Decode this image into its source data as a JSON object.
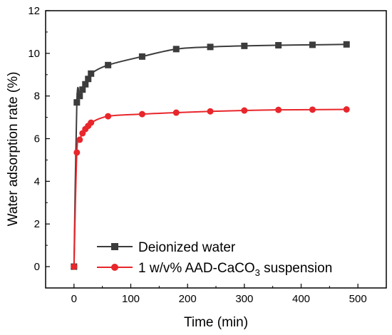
{
  "chart_data": {
    "type": "line",
    "title": "",
    "xlabel": "Time (min)",
    "ylabel": "Water adsorption rate (%)",
    "xlim": [
      -50,
      550
    ],
    "ylim": [
      -1,
      12
    ],
    "xticks": [
      0,
      100,
      200,
      300,
      400,
      500
    ],
    "yticks": [
      0,
      2,
      4,
      6,
      8,
      10,
      12
    ],
    "grid": false,
    "legend_position": "bottom-right",
    "series": [
      {
        "name": "Deionized water",
        "marker": "square",
        "color": "#3c3c3c",
        "x": [
          0,
          5,
          10,
          15,
          20,
          25,
          30,
          60,
          120,
          180,
          240,
          300,
          360,
          420,
          480
        ],
        "y": [
          0,
          7.7,
          8.0,
          8.3,
          8.55,
          8.8,
          9.05,
          9.45,
          9.85,
          10.2,
          10.3,
          10.35,
          10.38,
          10.4,
          10.42
        ]
      },
      {
        "name_main": "1 w/v% AAD-CaCO",
        "name_sub": "3",
        "name_tail": " suspension",
        "marker": "circle",
        "color": "#e8262b",
        "x": [
          0,
          5,
          10,
          15,
          20,
          25,
          30,
          60,
          120,
          180,
          240,
          300,
          360,
          420,
          480
        ],
        "y": [
          0,
          5.35,
          5.95,
          6.25,
          6.45,
          6.6,
          6.75,
          7.05,
          7.15,
          7.22,
          7.28,
          7.32,
          7.35,
          7.36,
          7.37
        ]
      }
    ]
  }
}
